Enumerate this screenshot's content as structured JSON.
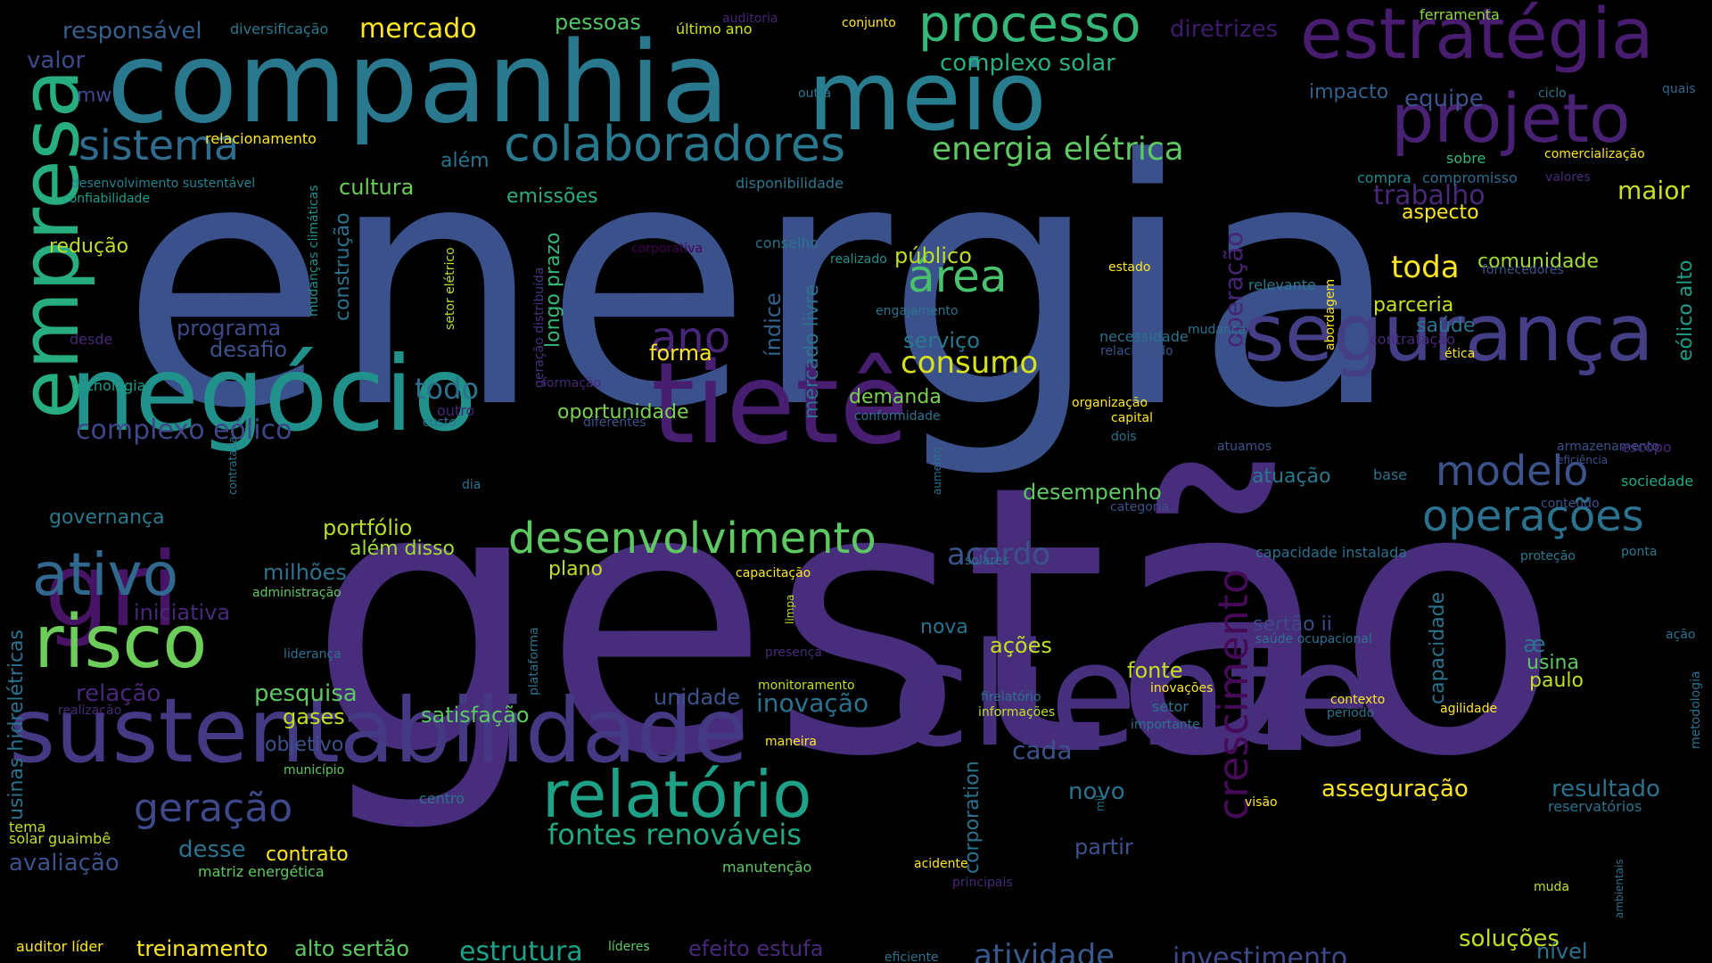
{
  "background": "#000000",
  "words": [
    {
      "text": "energia",
      "color": "#3b518b"
    },
    {
      "text": "gestão",
      "color": "#472d7b"
    },
    {
      "text": "companhia",
      "color": "#2a788e"
    },
    {
      "text": "meio",
      "color": "#287d8e"
    },
    {
      "text": "cliente",
      "color": "#46307e"
    },
    {
      "text": "negócio",
      "color": "#21918c"
    },
    {
      "text": "tietê",
      "color": "#481f70"
    },
    {
      "text": "sustentabilidade",
      "color": "#443983"
    },
    {
      "text": "segurança",
      "color": "#433e85"
    },
    {
      "text": "estratégia",
      "color": "#481c6e"
    },
    {
      "text": "projeto",
      "color": "#482173"
    },
    {
      "text": "empresa",
      "color": "#27ad81"
    },
    {
      "text": "gri",
      "color": "#471365"
    },
    {
      "text": "risco",
      "color": "#6ccd5a"
    },
    {
      "text": "relatório",
      "color": "#1fa187"
    },
    {
      "text": "processo",
      "color": "#35b779"
    },
    {
      "text": "colaboradores",
      "color": "#2a788e"
    },
    {
      "text": "desenvolvimento",
      "color": "#5ec962"
    },
    {
      "text": "operações",
      "color": "#2c728e"
    },
    {
      "text": "ativo",
      "color": "#31688e"
    },
    {
      "text": "sistema",
      "color": "#2f6c8e"
    },
    {
      "text": "crescimento",
      "color": "#450b57"
    },
    {
      "text": "geração",
      "color": "#3e4989"
    },
    {
      "text": "modelo",
      "color": "#3b528b"
    },
    {
      "text": "área",
      "color": "#4ac16d"
    },
    {
      "text": "ano",
      "color": "#482677"
    },
    {
      "text": "energia elétrica",
      "color": "#5ec962"
    },
    {
      "text": "fontes renováveis",
      "color": "#22a884"
    },
    {
      "text": "consumo",
      "color": "#d8e219"
    },
    {
      "text": "atividade",
      "color": "#38598c"
    },
    {
      "text": "investimento",
      "color": "#3e4989"
    },
    {
      "text": "estrutura",
      "color": "#1fa187"
    },
    {
      "text": "complexo eólico",
      "color": "#3f4788"
    },
    {
      "text": "acordo",
      "color": "#3b528b"
    },
    {
      "text": "trabalho",
      "color": "#482878"
    },
    {
      "text": "maior",
      "color": "#c8e020"
    },
    {
      "text": "toda",
      "color": "#fde725"
    },
    {
      "text": "todo",
      "color": "#2c728e"
    },
    {
      "text": "complexo solar",
      "color": "#29af7f"
    },
    {
      "text": "mercado",
      "color": "#fde725"
    },
    {
      "text": "responsável",
      "color": "#355f8d"
    },
    {
      "text": "pessoas",
      "color": "#52c569"
    },
    {
      "text": "diretrizes",
      "color": "#3f1b6c"
    },
    {
      "text": "ferramenta",
      "color": "#8fd744"
    },
    {
      "text": "valor",
      "color": "#3e4989"
    },
    {
      "text": "diversificação",
      "color": "#2a788e"
    },
    {
      "text": "auditoria",
      "color": "#482475"
    },
    {
      "text": "último ano",
      "color": "#d0e11c"
    },
    {
      "text": "conjunto",
      "color": "#fde725"
    },
    {
      "text": "mw",
      "color": "#3e4989"
    },
    {
      "text": "outra",
      "color": "#2a788e"
    },
    {
      "text": "impacto",
      "color": "#33638d"
    },
    {
      "text": "equipe",
      "color": "#3b528b"
    },
    {
      "text": "ciclo",
      "color": "#2a788e"
    },
    {
      "text": "quais",
      "color": "#31688e"
    },
    {
      "text": "relacionamento",
      "color": "#fde725"
    },
    {
      "text": "além",
      "color": "#2c728e"
    },
    {
      "text": "cultura",
      "color": "#6ccd5a"
    },
    {
      "text": "emissões",
      "color": "#29af7f"
    },
    {
      "text": "desenvolvimento sustentável",
      "color": "#26828e"
    },
    {
      "text": "confiabilidade",
      "color": "#1f9e89"
    },
    {
      "text": "mudanças climáticas",
      "color": "#21918c"
    },
    {
      "text": "construção",
      "color": "#2c728e"
    },
    {
      "text": "disponibilidade",
      "color": "#2a788e"
    },
    {
      "text": "sobre",
      "color": "#35b779"
    },
    {
      "text": "comercialização",
      "color": "#fde725"
    },
    {
      "text": "compra",
      "color": "#23898e"
    },
    {
      "text": "compromisso",
      "color": "#2f6c8e"
    },
    {
      "text": "valores",
      "color": "#472c7a"
    },
    {
      "text": "aspecto",
      "color": "#fde725"
    },
    {
      "text": "redução",
      "color": "#bddf26"
    },
    {
      "text": "corporativa",
      "color": "#440154"
    },
    {
      "text": "conselho",
      "color": "#2c728e"
    },
    {
      "text": "setor elétrico",
      "color": "#b8de29"
    },
    {
      "text": "geração distribuída",
      "color": "#46337f"
    },
    {
      "text": "longo prazo",
      "color": "#35b779"
    },
    {
      "text": "realizado",
      "color": "#21918c"
    },
    {
      "text": "público",
      "color": "#bddf26"
    },
    {
      "text": "estado",
      "color": "#fde725"
    },
    {
      "text": "comunidade",
      "color": "#a0da39"
    },
    {
      "text": "fornecedores",
      "color": "#3b528b"
    },
    {
      "text": "eólico alto",
      "color": "#1f9e89"
    },
    {
      "text": "programa",
      "color": "#3e4989"
    },
    {
      "text": "índice",
      "color": "#33638d"
    },
    {
      "text": "mercado livre",
      "color": "#2c728e"
    },
    {
      "text": "operação",
      "color": "#482475"
    },
    {
      "text": "relevante",
      "color": "#2a788e"
    },
    {
      "text": "parceria",
      "color": "#c8e020"
    },
    {
      "text": "engajamento",
      "color": "#2c728e"
    },
    {
      "text": "abordagem",
      "color": "#fde725"
    },
    {
      "text": "saúde",
      "color": "#2c728e"
    },
    {
      "text": "desde",
      "color": "#482878"
    },
    {
      "text": "desafio",
      "color": "#3b528b"
    },
    {
      "text": "serviço",
      "color": "#2a788e"
    },
    {
      "text": "necessidade",
      "color": "#2c728e"
    },
    {
      "text": "mudança",
      "color": "#2c728e"
    },
    {
      "text": "contratação",
      "color": "#482878"
    },
    {
      "text": "forma",
      "color": "#fde725"
    },
    {
      "text": "relacionado",
      "color": "#3b528b"
    },
    {
      "text": "ética",
      "color": "#fde725"
    },
    {
      "text": "tecnologia",
      "color": "#1f9e89"
    },
    {
      "text": "formação",
      "color": "#482878"
    },
    {
      "text": "demanda",
      "color": "#7ad151"
    },
    {
      "text": "organização",
      "color": "#fde725"
    },
    {
      "text": "outro",
      "color": "#482475"
    },
    {
      "text": "custo",
      "color": "#2c728e"
    },
    {
      "text": "diferentes",
      "color": "#3b528b"
    },
    {
      "text": "oportunidade",
      "color": "#7ad151"
    },
    {
      "text": "conformidade",
      "color": "#2c728e"
    },
    {
      "text": "capital",
      "color": "#fde725"
    },
    {
      "text": "dois",
      "color": "#2c728e"
    },
    {
      "text": "atuamos",
      "color": "#3b528b"
    },
    {
      "text": "armazenamento",
      "color": "#3b528b"
    },
    {
      "text": "escopo",
      "color": "#482878"
    },
    {
      "text": "eficiência",
      "color": "#3b528b"
    },
    {
      "text": "contratada",
      "color": "#2a788e"
    },
    {
      "text": "aumento",
      "color": "#2c728e"
    },
    {
      "text": "dia",
      "color": "#2c728e"
    },
    {
      "text": "atuação",
      "color": "#2a788e"
    },
    {
      "text": "base",
      "color": "#2c728e"
    },
    {
      "text": "sociedade",
      "color": "#22a884"
    },
    {
      "text": "governança",
      "color": "#2a788e"
    },
    {
      "text": "desempenho",
      "color": "#5ec962"
    },
    {
      "text": "categoria",
      "color": "#3b528b"
    },
    {
      "text": "conteúdo",
      "color": "#3b528b"
    },
    {
      "text": "usinas hidrelétricas",
      "color": "#2c728e"
    },
    {
      "text": "portfólio",
      "color": "#b5de2b"
    },
    {
      "text": "além disso",
      "color": "#a5db36"
    },
    {
      "text": "capacidade instalada",
      "color": "#2c728e"
    },
    {
      "text": "proteção",
      "color": "#2a788e"
    },
    {
      "text": "ponta",
      "color": "#2a788e"
    },
    {
      "text": "milhões",
      "color": "#2c728e"
    },
    {
      "text": "plano",
      "color": "#c2df23"
    },
    {
      "text": "capacitação",
      "color": "#fde725"
    },
    {
      "text": "solares",
      "color": "#2c728e"
    },
    {
      "text": "administração",
      "color": "#5ec962"
    },
    {
      "text": "iniciativa",
      "color": "#482878"
    },
    {
      "text": "limpa",
      "color": "#c2df23"
    },
    {
      "text": "plataforma",
      "color": "#2c728e"
    },
    {
      "text": "nova",
      "color": "#2c728e"
    },
    {
      "text": "ações",
      "color": "#c2df23"
    },
    {
      "text": "sertão ii",
      "color": "#3e4989"
    },
    {
      "text": "saúde ocupacional",
      "color": "#2c728e"
    },
    {
      "text": "capacidade",
      "color": "#2c728e"
    },
    {
      "text": "usina",
      "color": "#5ec962"
    },
    {
      "text": "ação",
      "color": "#2c728e"
    },
    {
      "text": "liderança",
      "color": "#2c728e"
    },
    {
      "text": "presença",
      "color": "#482878"
    },
    {
      "text": "fonte",
      "color": "#c2df23"
    },
    {
      "text": "paulo",
      "color": "#c2df23"
    },
    {
      "text": "metodologia",
      "color": "#2c728e"
    },
    {
      "text": "relação",
      "color": "#482878"
    },
    {
      "text": "pesquisa",
      "color": "#5ec962"
    },
    {
      "text": "unidade",
      "color": "#3b528b"
    },
    {
      "text": "inovação",
      "color": "#2c728e"
    },
    {
      "text": "firelatório",
      "color": "#2c728e"
    },
    {
      "text": "informações",
      "color": "#c2df23"
    },
    {
      "text": "inovações",
      "color": "#fde725"
    },
    {
      "text": "setor",
      "color": "#2c728e"
    },
    {
      "text": "contexto",
      "color": "#fde725"
    },
    {
      "text": "período",
      "color": "#2c728e"
    },
    {
      "text": "agilidade",
      "color": "#fde725"
    },
    {
      "text": "gases",
      "color": "#c2df23"
    },
    {
      "text": "satisfação",
      "color": "#5ec962"
    },
    {
      "text": "monitoramento",
      "color": "#c2df23"
    },
    {
      "text": "importante",
      "color": "#2c728e"
    },
    {
      "text": "realização",
      "color": "#482878"
    },
    {
      "text": "objetivo",
      "color": "#3b528b"
    },
    {
      "text": "maneira",
      "color": "#fde725"
    },
    {
      "text": "cada",
      "color": "#3b528b"
    },
    {
      "text": "município",
      "color": "#5ec962"
    },
    {
      "text": "corporation",
      "color": "#2c728e"
    },
    {
      "text": "centro",
      "color": "#2c728e"
    },
    {
      "text": "novo",
      "color": "#2c728e"
    },
    {
      "text": "asseguração",
      "color": "#fde725"
    },
    {
      "text": "resultado",
      "color": "#2c728e"
    },
    {
      "text": "tema",
      "color": "#c2df23"
    },
    {
      "text": "mil",
      "color": "#2c728e"
    },
    {
      "text": "visão",
      "color": "#fde725"
    },
    {
      "text": "reservatórios",
      "color": "#2c728e"
    },
    {
      "text": "solar guaimbê",
      "color": "#c2df23"
    },
    {
      "text": "desse",
      "color": "#2c728e"
    },
    {
      "text": "partir",
      "color": "#3b528b"
    },
    {
      "text": "contrato",
      "color": "#fde725"
    },
    {
      "text": "avaliação",
      "color": "#3b528b"
    },
    {
      "text": "matriz energética",
      "color": "#5ec962"
    },
    {
      "text": "acidente",
      "color": "#fde725"
    },
    {
      "text": "manutenção",
      "color": "#5ec962"
    },
    {
      "text": "ambientais",
      "color": "#2c728e"
    },
    {
      "text": "principais",
      "color": "#482878"
    },
    {
      "text": "muda",
      "color": "#c2df23"
    },
    {
      "text": "auditor líder",
      "color": "#fde725"
    },
    {
      "text": "treinamento",
      "color": "#fde725"
    },
    {
      "text": "alto sertão",
      "color": "#5ec962"
    },
    {
      "text": "líderes",
      "color": "#5ec962"
    },
    {
      "text": "efeito estufa",
      "color": "#482878"
    },
    {
      "text": "eficiente",
      "color": "#2c728e"
    },
    {
      "text": "soluções",
      "color": "#c2df23"
    },
    {
      "text": "nível",
      "color": "#2c728e"
    },
    {
      "text": "æ",
      "color": "#2c728e"
    }
  ]
}
